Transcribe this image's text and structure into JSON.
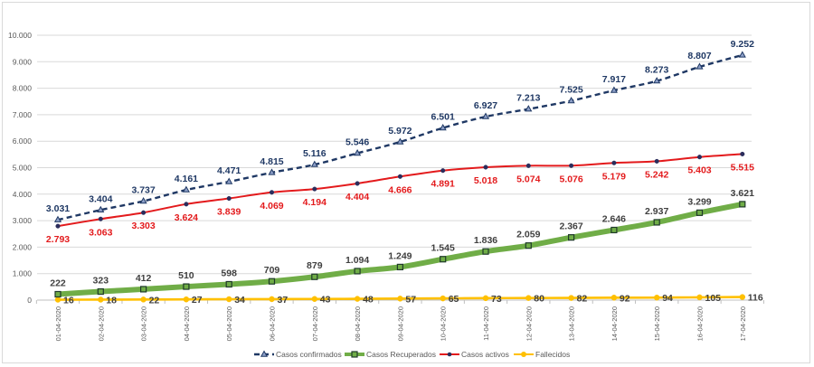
{
  "chart_data": {
    "type": "line",
    "title": "",
    "xlabel": "",
    "ylabel": "",
    "ylim": [
      0,
      10000
    ],
    "yticks": [
      0,
      1000,
      2000,
      3000,
      4000,
      5000,
      6000,
      7000,
      8000,
      9000,
      10000
    ],
    "ytick_labels": [
      "0",
      "1.000",
      "2.000",
      "3.000",
      "4.000",
      "5.000",
      "6.000",
      "7.000",
      "8.000",
      "9.000",
      "10.000"
    ],
    "grid": true,
    "legend_position": "bottom",
    "categories": [
      "01-04-2020",
      "02-04-2020",
      "03-04-2020",
      "04-04-2020",
      "05-04-2020",
      "06-04-2020",
      "07-04-2020",
      "08-04-2020",
      "09-04-2020",
      "10-04-2020",
      "11-04-2020",
      "12-04-2020",
      "13-04-2020",
      "14-04-2020",
      "15-04-2020",
      "16-04-2020",
      "17-04-2020"
    ],
    "series": [
      {
        "name": "Casos confirmados",
        "color": "#1f3864",
        "line_style": "dashed",
        "marker": "triangle",
        "label_position": "above",
        "values": [
          3031,
          3404,
          3737,
          4161,
          4471,
          4815,
          5116,
          5546,
          5972,
          6501,
          6927,
          7213,
          7525,
          7917,
          8273,
          8807,
          9252
        ],
        "labels": [
          "3.031",
          "3.404",
          "3.737",
          "4.161",
          "4.471",
          "4.815",
          "5.116",
          "5.546",
          "5.972",
          "6.501",
          "6.927",
          "7.213",
          "7.525",
          "7.917",
          "8.273",
          "8.807",
          "9.252"
        ]
      },
      {
        "name": "Casos Recuperados",
        "color": "#70ad47",
        "line_style": "thick",
        "marker": "square",
        "label_position": "above",
        "values": [
          222,
          323,
          412,
          510,
          598,
          709,
          879,
          1094,
          1249,
          1545,
          1836,
          2059,
          2367,
          2646,
          2937,
          3299,
          3621
        ],
        "labels": [
          "222",
          "323",
          "412",
          "510",
          "598",
          "709",
          "879",
          "1.094",
          "1.249",
          "1.545",
          "1.836",
          "2.059",
          "2.367",
          "2.646",
          "2.937",
          "3.299",
          "3.621"
        ]
      },
      {
        "name": "Casos activos",
        "color": "#e31a1c",
        "line_style": "solid",
        "marker": "circle",
        "label_position": "below",
        "values": [
          2793,
          3063,
          3303,
          3624,
          3839,
          4069,
          4194,
          4404,
          4666,
          4891,
          5018,
          5074,
          5076,
          5179,
          5242,
          5403,
          5515
        ],
        "labels": [
          "2.793",
          "3.063",
          "3.303",
          "3.624",
          "3.839",
          "4.069",
          "4.194",
          "4.404",
          "4.666",
          "4.891",
          "5.018",
          "5.074",
          "5.076",
          "5.179",
          "5.242",
          "5.403",
          "5.515"
        ]
      },
      {
        "name": "Fallecidos",
        "color": "#ffc000",
        "line_style": "solid",
        "marker": "circle",
        "label_position": "right",
        "values": [
          16,
          18,
          22,
          27,
          34,
          37,
          43,
          48,
          57,
          65,
          73,
          80,
          82,
          92,
          94,
          105,
          116
        ],
        "labels": [
          "16",
          "18",
          "22",
          "27",
          "34",
          "37",
          "43",
          "48",
          "57",
          "65",
          "73",
          "80",
          "82",
          "92",
          "94",
          "105",
          "116"
        ]
      }
    ]
  }
}
